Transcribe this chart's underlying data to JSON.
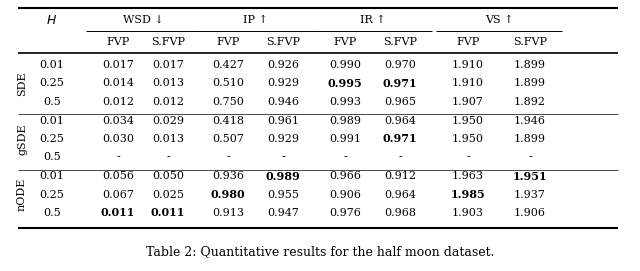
{
  "caption": "Table 2: Quantitative results for the half moon dataset.",
  "col_groups": [
    {
      "label": "WSD ↓"
    },
    {
      "label": "IP ↑"
    },
    {
      "label": "IR ↑"
    },
    {
      "label": "VS ↑"
    }
  ],
  "sub_headers": [
    "FVP",
    "S.FVP",
    "FVP",
    "S.FVP",
    "FVP",
    "S.FVP",
    "FVP",
    "S.FVP"
  ],
  "row_groups": [
    {
      "label": "SDE",
      "rows": [
        {
          "H": "0.01",
          "vals": [
            "0.017",
            "0.017",
            "0.427",
            "0.926",
            "0.990",
            "0.970",
            "1.910",
            "1.899"
          ],
          "bold": []
        },
        {
          "H": "0.25",
          "vals": [
            "0.014",
            "0.013",
            "0.510",
            "0.929",
            "0.995",
            "0.971",
            "1.910",
            "1.899"
          ],
          "bold": [
            4,
            5
          ]
        },
        {
          "H": "0.5",
          "vals": [
            "0.012",
            "0.012",
            "0.750",
            "0.946",
            "0.993",
            "0.965",
            "1.907",
            "1.892"
          ],
          "bold": []
        }
      ]
    },
    {
      "label": "gSDE",
      "rows": [
        {
          "H": "0.01",
          "vals": [
            "0.034",
            "0.029",
            "0.418",
            "0.961",
            "0.989",
            "0.964",
            "1.950",
            "1.946"
          ],
          "bold": []
        },
        {
          "H": "0.25",
          "vals": [
            "0.030",
            "0.013",
            "0.507",
            "0.929",
            "0.991",
            "0.971",
            "1.950",
            "1.899"
          ],
          "bold": [
            5
          ]
        },
        {
          "H": "0.5",
          "vals": [
            "-",
            "-",
            "-",
            "-",
            "-",
            "-",
            "-",
            "-"
          ],
          "bold": []
        }
      ]
    },
    {
      "label": "nODE",
      "rows": [
        {
          "H": "0.01",
          "vals": [
            "0.056",
            "0.050",
            "0.936",
            "0.989",
            "0.966",
            "0.912",
            "1.963",
            "1.951"
          ],
          "bold": [
            3,
            7
          ]
        },
        {
          "H": "0.25",
          "vals": [
            "0.067",
            "0.025",
            "0.980",
            "0.955",
            "0.906",
            "0.964",
            "1.985",
            "1.937"
          ],
          "bold": [
            2,
            6
          ]
        },
        {
          "H": "0.5",
          "vals": [
            "0.011",
            "0.011",
            "0.913",
            "0.947",
            "0.976",
            "0.968",
            "1.903",
            "1.906"
          ],
          "bold": [
            0,
            1
          ]
        }
      ]
    }
  ],
  "bg_color": "#ffffff",
  "text_color": "#000000",
  "font_size": 8.0,
  "caption_font_size": 9.0
}
